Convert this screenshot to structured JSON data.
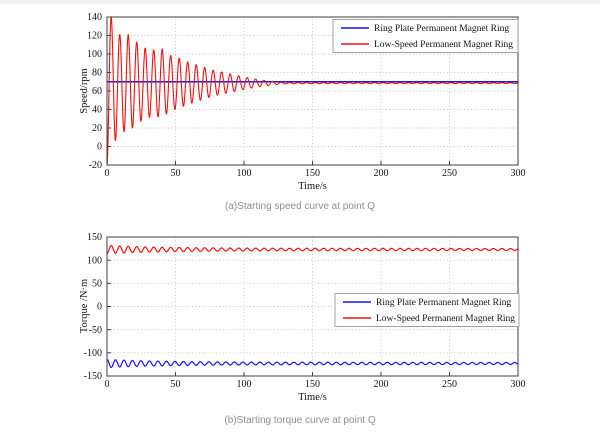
{
  "style": {
    "background": "#ffffff",
    "frame": "#3f3f3f",
    "grid": "#cbcbcb",
    "tick_text": "#141414",
    "caption_color": "#8f8f8f",
    "blue_series": "#1515ef",
    "red_series": "#ee1111"
  },
  "chart_data": [
    {
      "type": "line",
      "caption": "(a)Starting speed curve at point Q",
      "xlabel": "Time/s",
      "ylabel": "Speed/rpm",
      "xlim": [
        0,
        300
      ],
      "ylim": [
        -20,
        140
      ],
      "xticks": [
        0,
        50,
        100,
        150,
        200,
        250,
        300
      ],
      "yticks": [
        -20,
        0,
        20,
        40,
        60,
        80,
        100,
        120,
        140
      ],
      "grid": "dotted",
      "legend_position": "top-right",
      "series": [
        {
          "name": "Ring Plate Permanent Magnet Ring",
          "color": "#1515ef",
          "width": 1.5,
          "description": "constant speed of 70 rpm over 0-300 s",
          "model": {
            "kind": "constant",
            "value": 70,
            "t_range": [
              0,
              300
            ]
          }
        },
        {
          "name": "Low-Speed Permanent Magnet Ring",
          "color": "#ee1111",
          "width": 1.1,
          "description": "starts at -20 rpm, damped oscillation (first peak 140 rpm, period ~6.2 s), settles to ~68.5 rpm by t~125 s",
          "model": {
            "kind": "damped_cosine",
            "mean": 68.5,
            "sign": -1,
            "period_s": 6.2,
            "dt_s": 0.25,
            "t_range": [
              0,
              300
            ],
            "amplitude_envelope": [
              [
                0,
                88.5
              ],
              [
                3.1,
                71.5
              ],
              [
                9.3,
                52.5
              ],
              [
                15.5,
                52.5
              ],
              [
                21.7,
                44.5
              ],
              [
                27.9,
                38
              ],
              [
                34.1,
                36
              ],
              [
                40.3,
                37
              ],
              [
                46.5,
                30
              ],
              [
                52.7,
                27
              ],
              [
                58.9,
                23
              ],
              [
                65.1,
                20
              ],
              [
                71.3,
                17
              ],
              [
                77.5,
                14
              ],
              [
                83.7,
                12
              ],
              [
                89.9,
                10
              ],
              [
                96.1,
                8
              ],
              [
                102.3,
                6
              ],
              [
                108.5,
                4.5
              ],
              [
                114.7,
                3
              ],
              [
                120.9,
                2
              ],
              [
                127.1,
                1
              ],
              [
                133.3,
                0.6
              ],
              [
                300,
                0.4
              ]
            ]
          }
        }
      ]
    },
    {
      "type": "line",
      "caption": "(b)Starting torque curve at point Q",
      "xlabel": "Time/s",
      "ylabel": "Torque /N·m",
      "xlim": [
        0,
        300
      ],
      "ylim": [
        -150,
        150
      ],
      "xticks": [
        0,
        50,
        100,
        150,
        200,
        250,
        300
      ],
      "yticks": [
        -150,
        -100,
        -50,
        0,
        50,
        100,
        150
      ],
      "grid": "dotted",
      "legend_position": "middle-right",
      "series": [
        {
          "name": "Ring Plate Permanent Magnet Ring",
          "color": "#1515ef",
          "width": 1.2,
          "description": "oscillates around -123 N·m, ripple decays from ~±9 to ~±2 N·m and persists to 300 s",
          "model": {
            "kind": "damped_cosine",
            "mean": -123,
            "sign": 1,
            "period_s": 6.2,
            "dt_s": 0.25,
            "t_range": [
              0,
              300
            ],
            "amplitude_envelope": [
              [
                0,
                9
              ],
              [
                6,
                8
              ],
              [
                15,
                7
              ],
              [
                30,
                5.5
              ],
              [
                50,
                4.5
              ],
              [
                80,
                3.5
              ],
              [
                120,
                2.8
              ],
              [
                300,
                2.2
              ]
            ]
          }
        },
        {
          "name": "Low-Speed Permanent Magnet Ring",
          "color": "#ee1111",
          "width": 1.2,
          "description": "oscillates around +123 N·m, ripple decays from ~±9 to ~±2 N·m and persists to 300 s",
          "model": {
            "kind": "damped_cosine",
            "mean": 123,
            "sign": -1,
            "period_s": 6.2,
            "dt_s": 0.25,
            "t_range": [
              0,
              300
            ],
            "amplitude_envelope": [
              [
                0,
                9
              ],
              [
                6,
                8
              ],
              [
                15,
                7
              ],
              [
                30,
                5.5
              ],
              [
                50,
                4.5
              ],
              [
                80,
                3.5
              ],
              [
                120,
                2.8
              ],
              [
                300,
                2.2
              ]
            ]
          }
        }
      ]
    }
  ]
}
